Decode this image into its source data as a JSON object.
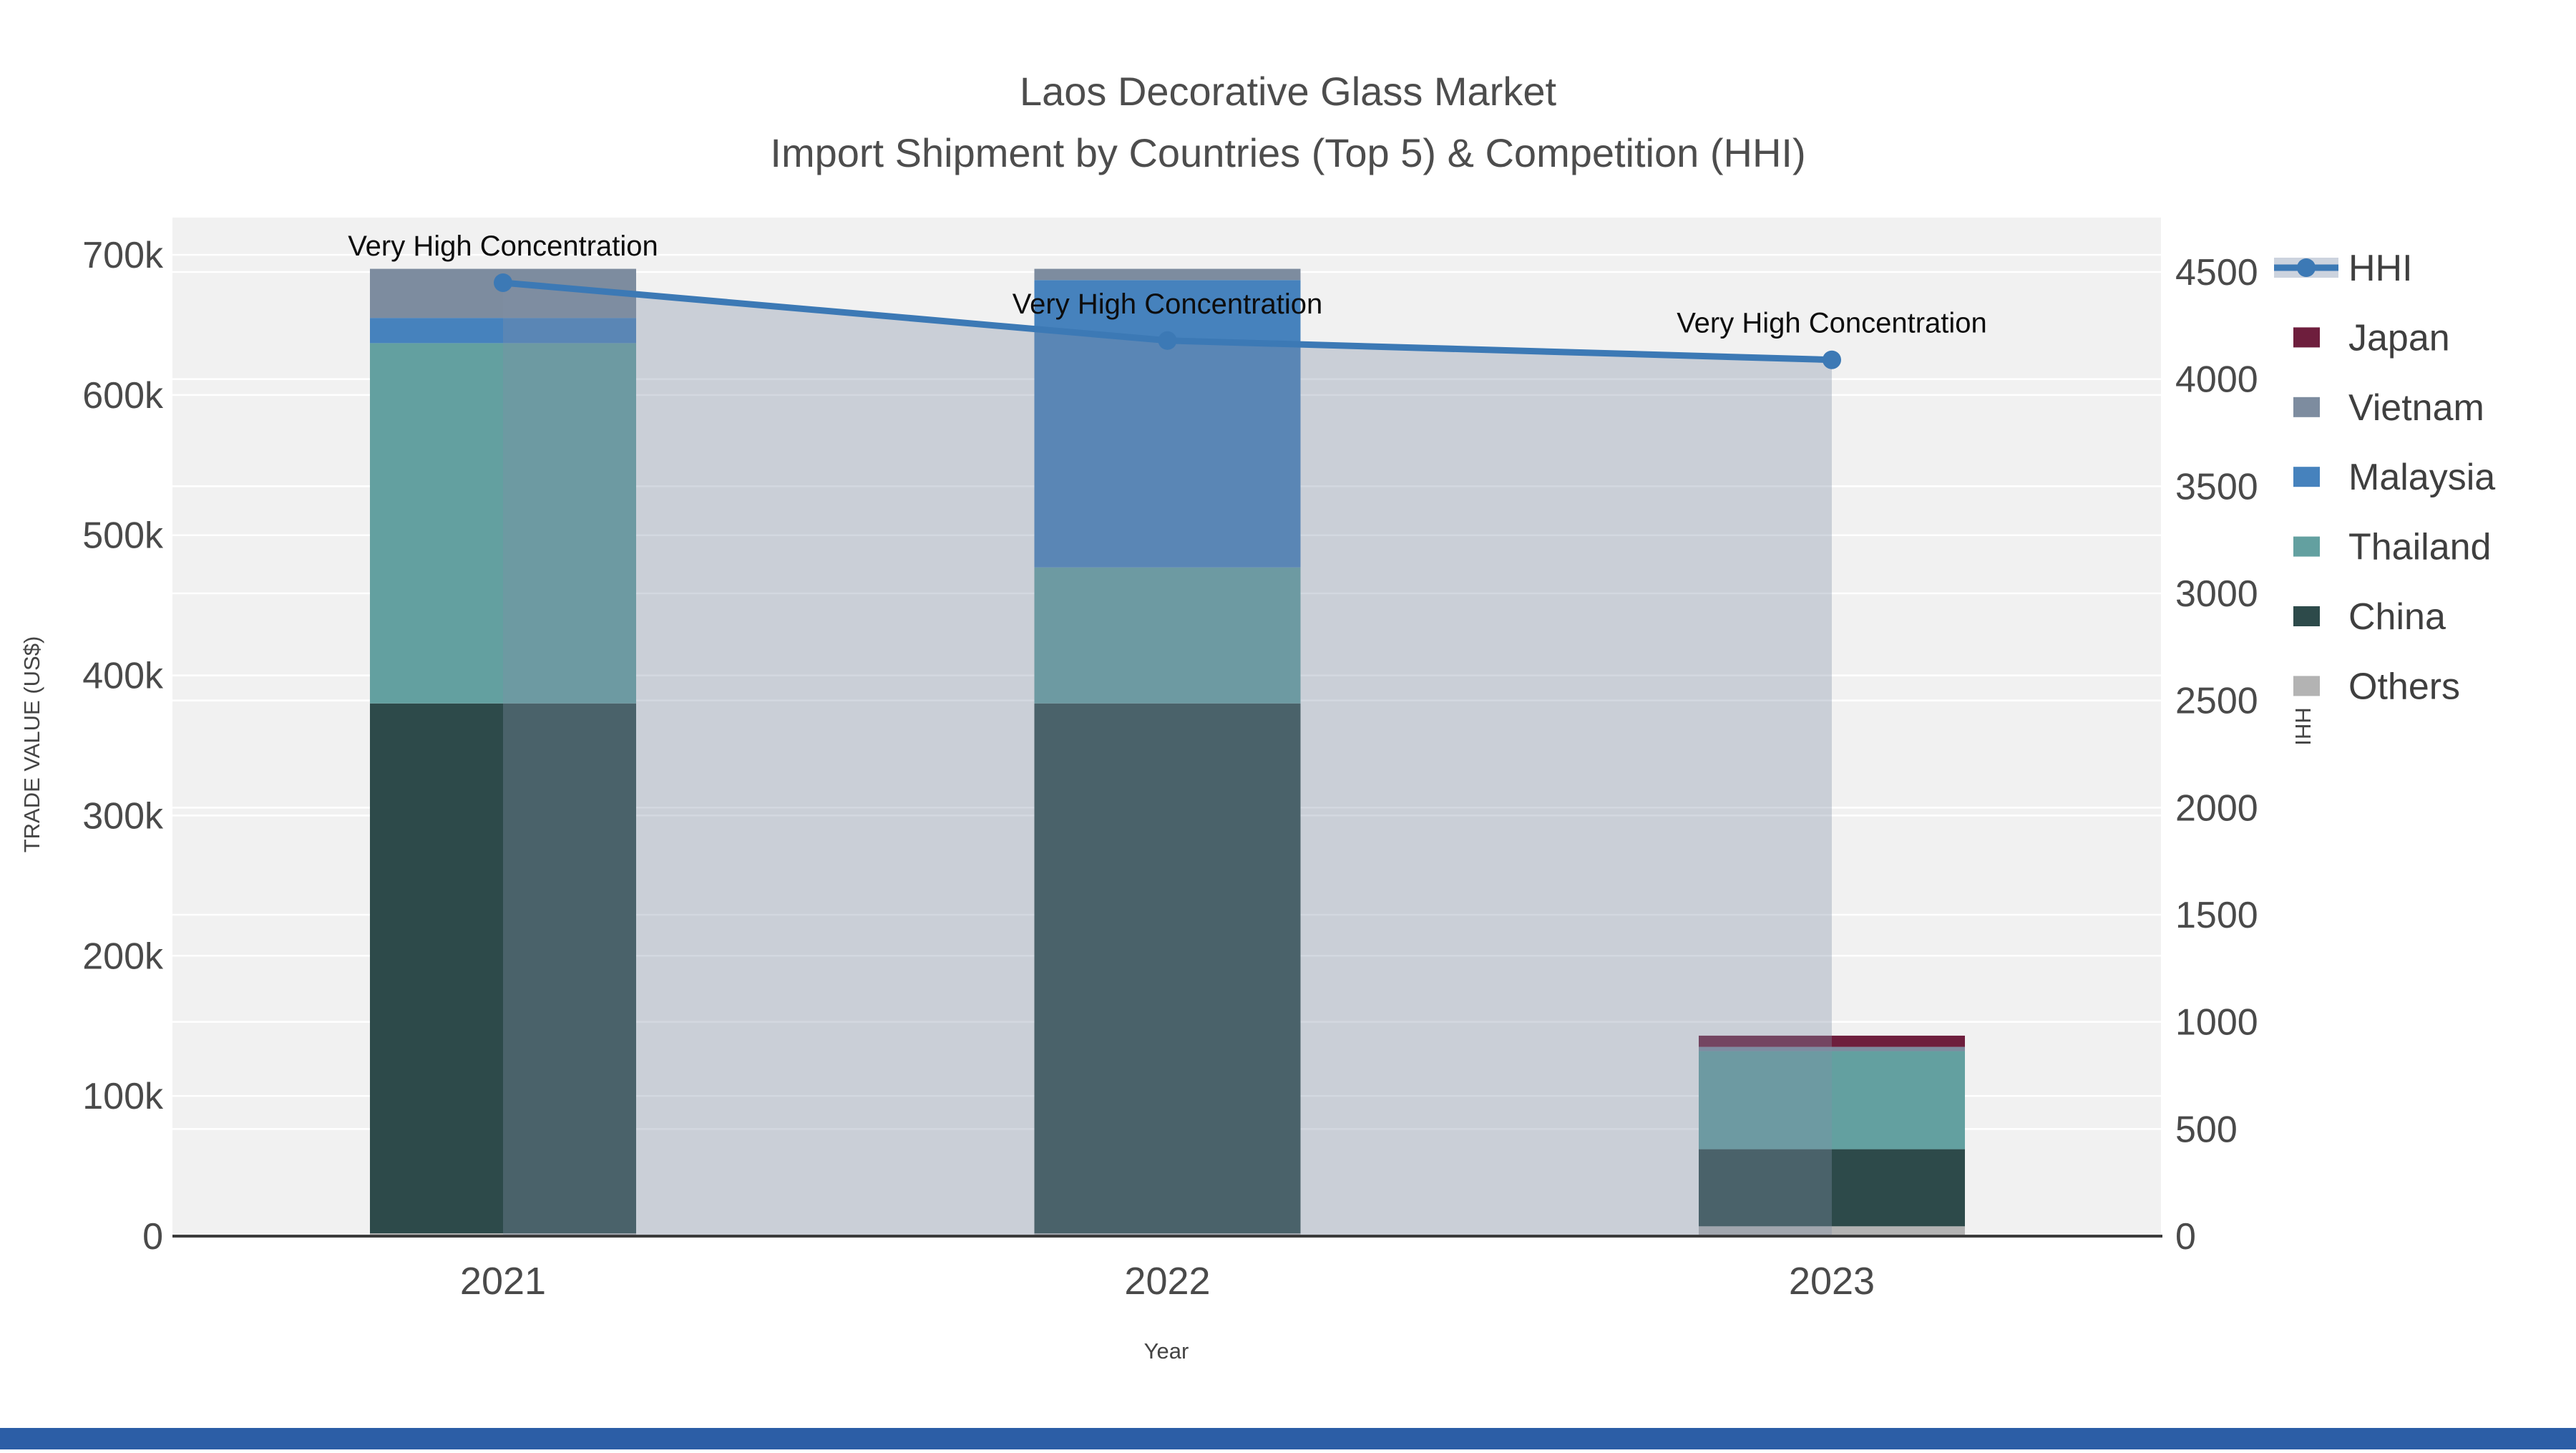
{
  "title": {
    "line1": "Laos Decorative Glass Market",
    "line2": "Import Shipment by Countries (Top 5) & Competition (HHI)"
  },
  "axes": {
    "x_title": "Year",
    "y_left_title": "TRADE VALUE (US$)",
    "y_right_title": "HHI",
    "x_ticks": [
      "2021",
      "2022",
      "2023"
    ],
    "y_left_ticks": [
      {
        "label": "0",
        "value": 0
      },
      {
        "label": "100k",
        "value": 100000
      },
      {
        "label": "200k",
        "value": 200000
      },
      {
        "label": "300k",
        "value": 300000
      },
      {
        "label": "400k",
        "value": 400000
      },
      {
        "label": "500k",
        "value": 500000
      },
      {
        "label": "600k",
        "value": 600000
      },
      {
        "label": "700k",
        "value": 700000
      }
    ],
    "y_right_ticks": [
      {
        "label": "0",
        "value": 0
      },
      {
        "label": "500",
        "value": 500
      },
      {
        "label": "1000",
        "value": 1000
      },
      {
        "label": "1500",
        "value": 1500
      },
      {
        "label": "2000",
        "value": 2000
      },
      {
        "label": "2500",
        "value": 2500
      },
      {
        "label": "3000",
        "value": 3000
      },
      {
        "label": "3500",
        "value": 3500
      },
      {
        "label": "4000",
        "value": 4000
      },
      {
        "label": "4500",
        "value": 4500
      }
    ]
  },
  "legend": {
    "items": [
      {
        "label": "HHI",
        "type": "line",
        "color": "#3c79b5",
        "band_color": "#ccd3de"
      },
      {
        "label": "Japan",
        "type": "swatch",
        "color": "#6e1e3d"
      },
      {
        "label": "Vietnam",
        "type": "swatch",
        "color": "#7d8c9f"
      },
      {
        "label": "Malaysia",
        "type": "swatch",
        "color": "#4682bd"
      },
      {
        "label": "Thailand",
        "type": "swatch",
        "color": "#63a0a0"
      },
      {
        "label": "China",
        "type": "swatch",
        "color": "#2d4a4a"
      },
      {
        "label": "Others",
        "type": "swatch",
        "color": "#b3b3b3"
      }
    ]
  },
  "chart_data": {
    "type": "bar",
    "subtype": "stacked-bars-with-line-overlay",
    "title": "Laos Decorative Glass Market — Import Shipment by Countries (Top 5) & Competition (HHI)",
    "categories": [
      "2021",
      "2022",
      "2023"
    ],
    "xlabel": "Year",
    "ylabel_left": "TRADE VALUE (US$)",
    "ylabel_right": "HHI",
    "y_left_range": [
      0,
      731000
    ],
    "y_right_range": [
      0,
      4500
    ],
    "grid": true,
    "legend_position": "right",
    "plot_bg": "#f1f1f1",
    "stack_order": "bottom_to_top",
    "series": [
      {
        "name": "Others",
        "color": "#b3b3b3",
        "values": [
          2000,
          2000,
          7000
        ]
      },
      {
        "name": "China",
        "color": "#2d4a4a",
        "values": [
          378000,
          378000,
          55000
        ]
      },
      {
        "name": "Thailand",
        "color": "#63a0a0",
        "values": [
          257000,
          97000,
          70000
        ]
      },
      {
        "name": "Malaysia",
        "color": "#4682bd",
        "values": [
          18000,
          205000,
          0
        ]
      },
      {
        "name": "Vietnam",
        "color": "#7d8c9f",
        "values": [
          35000,
          8000,
          3000
        ]
      },
      {
        "name": "Japan",
        "color": "#6e1e3d",
        "values": [
          0,
          0,
          8000
        ]
      }
    ],
    "stack_totals": [
      690000,
      690000,
      143000
    ],
    "line_series": {
      "name": "HHI",
      "axis": "right",
      "color": "#3c79b5",
      "fill_color": "rgba(130,144,166,0.35)",
      "values": [
        4450,
        4180,
        4090
      ]
    },
    "annotations": [
      {
        "category": "2021",
        "text": "Very High Concentration"
      },
      {
        "category": "2022",
        "text": "Very High Concentration"
      },
      {
        "category": "2023",
        "text": "Very High Concentration"
      }
    ]
  },
  "footer_bar": {
    "color": "#2c5ea6"
  }
}
